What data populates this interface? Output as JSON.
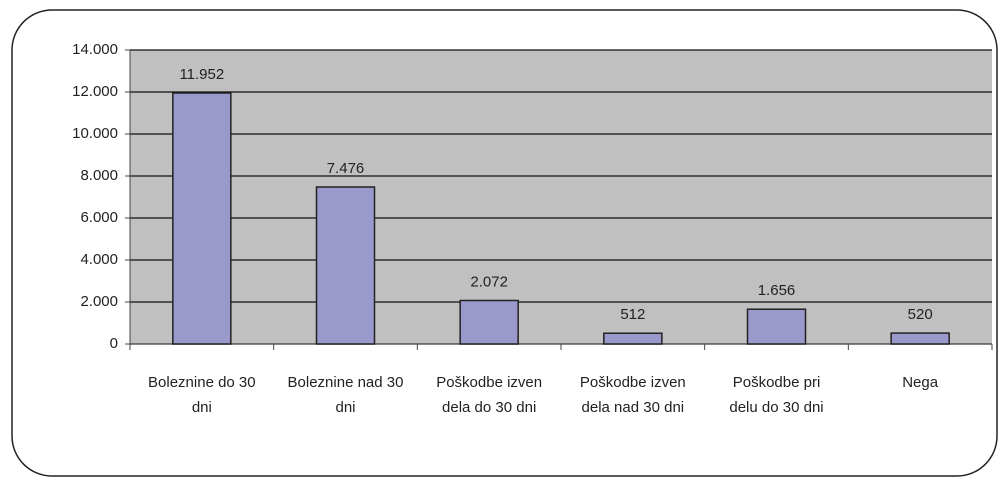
{
  "chart_data": {
    "type": "bar",
    "categories": [
      "Boleznine do 30 dni",
      "Boleznine nad 30 dni",
      "Poškodbe izven dela do 30 dni",
      "Poškodbe izven dela nad 30 dni",
      "Poškodbe pri delu do 30 dni",
      "Nega"
    ],
    "values": [
      11952,
      7476,
      2072,
      512,
      1656,
      520
    ],
    "value_labels": [
      "11.952",
      "7.476",
      "2.072",
      "512",
      "1.656",
      "520"
    ],
    "color": "#9999cc",
    "ylim": [
      0,
      14000
    ],
    "yticks": [
      0,
      {
        "value": 2000,
        "label": "2.000"
      },
      {
        "value": 4000,
        "label": "4.000"
      },
      {
        "value": 6000,
        "label": "6.000"
      },
      {
        "value": 8000,
        "label": "8.000"
      },
      {
        "value": 10000,
        "label": "10.000"
      },
      {
        "value": 12000,
        "label": "12.000"
      },
      {
        "value": 14000,
        "label": "14.000"
      }
    ],
    "grid": true
  }
}
